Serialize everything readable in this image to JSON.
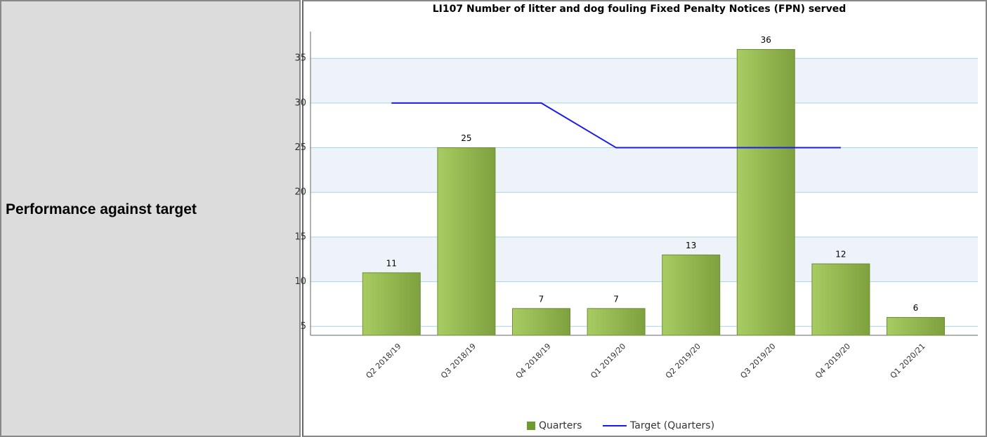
{
  "row_label": "Performance against target",
  "chart_data": {
    "type": "bar",
    "title": "LI107  Number  of litter and dog fouling Fixed Penalty Notices (FPN) served",
    "categories": [
      "Q2 2018/19",
      "Q3 2018/19",
      "Q4 2018/19",
      "Q1 2019/20",
      "Q2 2019/20",
      "Q3 2019/20",
      "Q4 2019/20",
      "Q1 2020/21"
    ],
    "series": [
      {
        "name": "Quarters",
        "color": "#8bb54a",
        "values": [
          11,
          25,
          7,
          7,
          13,
          36,
          12,
          6
        ]
      },
      {
        "name": "Target (Quarters)",
        "color": "#1a1aee",
        "type": "line",
        "values": [
          30,
          30,
          30,
          25,
          25,
          25,
          25,
          null
        ]
      }
    ],
    "ylim": [
      4,
      38
    ],
    "yticks": [
      5,
      10,
      15,
      20,
      25,
      30,
      35
    ],
    "grid": true,
    "legend": "bottom"
  }
}
